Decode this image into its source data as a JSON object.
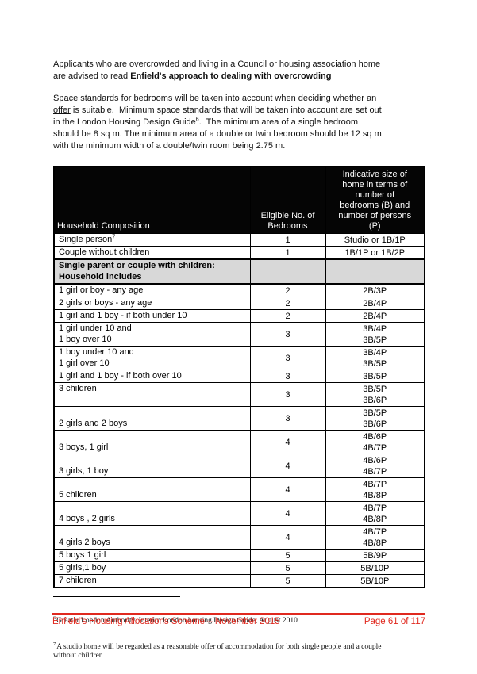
{
  "colors": {
    "page_bg": "#ffffff",
    "text": "#111111",
    "header_bg": "#050505",
    "header_text": "#ffffff",
    "section_bg": "#d8d8d8",
    "accent_red": "#e0291f"
  },
  "intro": {
    "para1_runs": [
      {
        "t": "Applicants who are overcrowded and living in a Council or housing association home\nare advised to read "
      },
      {
        "t": "Enfield's approach to dealing with overcrowding",
        "b": true
      }
    ],
    "para2_runs": [
      {
        "t": "Space standards for bedrooms will be taken into account when deciding whether an\n"
      },
      {
        "t": "offer",
        "u": true
      },
      {
        "t": " is suitable.  Minimum space standards that will be taken into account are set out\nin the London Housing Design Guide"
      },
      {
        "t": "6",
        "sup": true
      },
      {
        "t": ".  The minimum area of a single bedroom\nshould be 8 sq m. The minimum area of a double or twin bedroom should be 12 sq m\nwith the minimum width of a double/twin room being 2.75 m."
      }
    ]
  },
  "table": {
    "header": {
      "col1": "Household Composition",
      "col2_lines": [
        "Eligible No. of",
        "Bedrooms"
      ],
      "col3_lines": [
        "Indicative size of",
        "home in terms of",
        "number of",
        "bedrooms (B) and",
        "number of persons",
        "(P)"
      ]
    },
    "rows": [
      {
        "comp": [
          "Single person"
        ],
        "sup": "7",
        "beds": "1",
        "sizes": [
          "Studio or 1B/1P"
        ]
      },
      {
        "comp": [
          "Couple without children"
        ],
        "beds": "1",
        "sizes": [
          "1B/1P or 1B/2P"
        ]
      },
      {
        "section": true,
        "tall": true,
        "comp": [
          "Single parent or couple with children:",
          "Household includes"
        ],
        "beds": "",
        "sizes": []
      },
      {
        "comp": [
          "1 girl or boy - any age"
        ],
        "beds": "2",
        "sizes": [
          "2B/3P"
        ]
      },
      {
        "comp": [
          "2 girls or boys - any age"
        ],
        "beds": "2",
        "sizes": [
          "2B/4P"
        ]
      },
      {
        "comp": [
          "1 girl and 1 boy - if both under 10"
        ],
        "beds": "2",
        "sizes": [
          "2B/4P"
        ]
      },
      {
        "comp": [
          "1 girl under 10 and",
          "1 boy over 10"
        ],
        "beds": "3",
        "sizes": [
          "3B/4P",
          "3B/5P"
        ],
        "tall": true
      },
      {
        "comp": [
          "1 boy under 10 and",
          "1 girl over 10"
        ],
        "beds": "3",
        "sizes": [
          "3B/4P",
          "3B/5P"
        ],
        "tall": true
      },
      {
        "comp": [
          "1 girl and 1 boy - if both over 10"
        ],
        "beds": "3",
        "sizes": [
          "3B/5P"
        ]
      },
      {
        "comp": [
          "3 children"
        ],
        "beds": "3",
        "sizes": [
          "3B/5P",
          "3B/6P"
        ],
        "tall": true,
        "align": "top"
      },
      {
        "comp": [
          "2 girls and 2 boys"
        ],
        "beds": "3",
        "sizes": [
          "3B/5P",
          "3B/6P"
        ],
        "tall": true,
        "align": "bottom"
      },
      {
        "comp": [
          "3 boys, 1 girl"
        ],
        "beds": "4",
        "sizes": [
          "4B/6P",
          "4B/7P"
        ],
        "tall": true,
        "align": "bottom"
      },
      {
        "comp": [
          "3 girls, 1 boy"
        ],
        "beds": "4",
        "sizes": [
          "4B/6P",
          "4B/7P"
        ],
        "tall": true,
        "align": "bottom"
      },
      {
        "comp": [
          "5 children"
        ],
        "beds": "4",
        "sizes": [
          "4B/7P",
          "4B/8P"
        ],
        "tall": true,
        "align": "bottom"
      },
      {
        "comp": [
          "4 boys , 2 girls"
        ],
        "beds": "4",
        "sizes": [
          "4B/7P",
          "4B/8P"
        ],
        "tall": true,
        "align": "bottom"
      },
      {
        "comp": [
          "4 girls 2 boys"
        ],
        "beds": "4",
        "sizes": [
          "4B/7P",
          "4B/8P"
        ],
        "tall": true,
        "align": "bottom"
      },
      {
        "comp": [
          "5 boys 1 girl"
        ],
        "beds": "5",
        "sizes": [
          "5B/9P"
        ]
      },
      {
        "comp": [
          "5 girls,1 boy"
        ],
        "beds": "5",
        "sizes": [
          "5B/10P"
        ]
      },
      {
        "comp": [
          "7 children"
        ],
        "beds": "5",
        "sizes": [
          "5B/10P"
        ]
      }
    ]
  },
  "footnotes": [
    {
      "marker": "6",
      "text": "Greater London Authority, Interim London housing Design Guide, August 2010"
    },
    {
      "marker": "7",
      "text": "A studio home will be regarded as a reasonable offer of accommodation for both single people and a couple\nwithout children"
    }
  ],
  "footer": {
    "left": "Enfield's Housing Allocations Scheme – November 2015",
    "right": "Page 61 of 117"
  }
}
